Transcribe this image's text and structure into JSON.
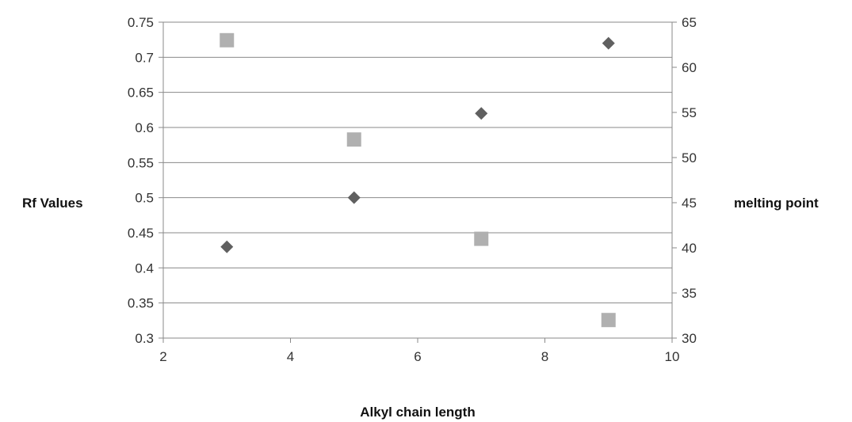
{
  "chart_data": {
    "type": "scatter",
    "xlabel": "Alkyl chain length",
    "ylabel": "Rf Values",
    "y2label": "melting point",
    "xlim": [
      2,
      10
    ],
    "ylim": [
      0.3,
      0.75
    ],
    "y2lim": [
      30,
      65
    ],
    "x_ticks": [
      "2",
      "4",
      "6",
      "8",
      "10"
    ],
    "y_ticks": [
      "0.3",
      "0.35",
      "0.4",
      "0.45",
      "0.5",
      "0.55",
      "0.6",
      "0.65",
      "0.7",
      "0.75"
    ],
    "y2_ticks": [
      "30",
      "35",
      "40",
      "45",
      "50",
      "55",
      "60",
      "65"
    ],
    "grid": "horizontal",
    "series": [
      {
        "axis": "left",
        "marker": "diamond",
        "color": "#606060",
        "points": [
          {
            "x": 3,
            "y": 0.43
          },
          {
            "x": 5,
            "y": 0.5
          },
          {
            "x": 7,
            "y": 0.62
          },
          {
            "x": 9,
            "y": 0.72
          }
        ]
      },
      {
        "axis": "right",
        "marker": "square",
        "color": "#b0b0b0",
        "points": [
          {
            "x": 3,
            "y": 63
          },
          {
            "x": 5,
            "y": 52
          },
          {
            "x": 7,
            "y": 41
          },
          {
            "x": 9,
            "y": 32
          }
        ]
      }
    ]
  }
}
